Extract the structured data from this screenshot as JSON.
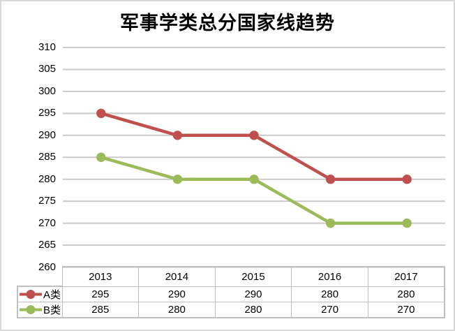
{
  "title": "军事学类总分国家线趋势",
  "colors": {
    "series_a": "#C0504D",
    "series_b": "#9BBB59",
    "gridline": "#C9C9C9",
    "table_border": "#BFBFBF",
    "text": "#000000",
    "frame": "#D9D9D9",
    "background": "#FFFFFF"
  },
  "chart_data": {
    "type": "line",
    "title": "军事学类总分国家线趋势",
    "categories": [
      "2013",
      "2014",
      "2015",
      "2016",
      "2017"
    ],
    "series": [
      {
        "name": "A类",
        "color": "#C0504D",
        "values": [
          295,
          290,
          290,
          280,
          280
        ]
      },
      {
        "name": "B类",
        "color": "#9BBB59",
        "values": [
          285,
          280,
          280,
          270,
          270
        ]
      }
    ],
    "ylim": [
      260,
      310
    ],
    "ytick_step": 5,
    "yticks": [
      310,
      305,
      300,
      295,
      290,
      285,
      280,
      275,
      270,
      265,
      260
    ],
    "xlabel": "",
    "ylabel": "",
    "grid": "horizontal",
    "marker": "circle",
    "legend_position": "data-table-left"
  }
}
